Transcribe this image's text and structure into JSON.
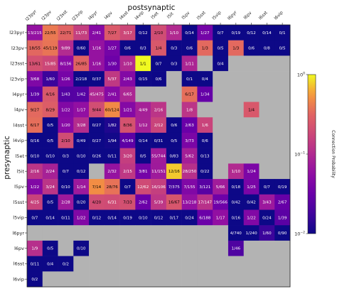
{
  "chart_data": {
    "type": "heatmap",
    "xlabel": "postsynaptic",
    "ylabel": "presynaptic",
    "colorbar_label": "Connection Probability",
    "colorbar_scale": "log",
    "colorbar_range": [
      0.01,
      1
    ],
    "colorbar_ticks": [
      {
        "value": 1,
        "base": "10",
        "exp": "0"
      },
      {
        "value": 0.1,
        "base": "10",
        "exp": "−1"
      },
      {
        "value": 0.01,
        "base": "10",
        "exp": "−2"
      }
    ],
    "colormap": "plasma",
    "empty_color": "#b3b3b3",
    "x_categories": [
      "l23pyr",
      "l23pv",
      "l23sst",
      "l23vip",
      "l4pyr",
      "l4pv",
      "l4sst",
      "l4vip",
      "l5et",
      "l5it",
      "l5pv",
      "l5sst",
      "l5vip",
      "l6pyr",
      "l6pv",
      "l6sst",
      "l6vip"
    ],
    "y_categories": [
      "l23pyr",
      "l23pv",
      "l23sst",
      "l23vip",
      "l4pyr",
      "l4pv",
      "l4sst",
      "l4vip",
      "l5et",
      "l5it",
      "l5pv",
      "l5sst",
      "l5vip",
      "l6pyr",
      "l6pv",
      "l6sst",
      "l6vip"
    ],
    "cells": [
      [
        "13/215",
        "22/55",
        "22/71",
        "11/73",
        "2/41",
        "7/27",
        "3/17",
        "0/12",
        "2/10",
        "1/10",
        "0/14",
        "1/27",
        "0/7",
        "0/19",
        "0/12",
        "0/14",
        "0/1"
      ],
      [
        "18/55",
        "45/119",
        "9/89",
        "0/60",
        "1/16",
        "1/27",
        "0/6",
        "0/3",
        "1/4",
        "0/3",
        "0/6",
        "1/3",
        "0/5",
        "1/3",
        "0/6",
        "0/8",
        "0/5"
      ],
      [
        "13/61",
        "15/85",
        "8/156",
        "26/85",
        "1/16",
        "1/30",
        "1/10",
        "1/1",
        "0/7",
        "0/3",
        "1/11",
        "",
        "0/4",
        "",
        "",
        "",
        ""
      ],
      [
        "3/68",
        "1/60",
        "1/26",
        "2/218",
        "0/37",
        "5/37",
        "2/43",
        "0/15",
        "0/6",
        "",
        "0/1",
        "0/4",
        "",
        "",
        "",
        "",
        ""
      ],
      [
        "1/39",
        "4/16",
        "1/43",
        "1/42",
        "45/475",
        "2/41",
        "6/65",
        "",
        "",
        "",
        "6/17",
        "1/34",
        "",
        "",
        "",
        "",
        ""
      ],
      [
        "9/27",
        "8/29",
        "1/22",
        "1/17",
        "9/44",
        "60/124",
        "1/21",
        "4/49",
        "2/16",
        "",
        "1/8",
        "",
        "",
        "",
        "1/4",
        "",
        ""
      ],
      [
        "6/17",
        "0/5",
        "1/20",
        "3/28",
        "0/27",
        "1/82",
        "8/36",
        "1/12",
        "2/12",
        "0/6",
        "2/63",
        "1/6",
        "",
        "",
        "",
        "",
        ""
      ],
      [
        "0/16",
        "0/5",
        "2/10",
        "0/49",
        "0/27",
        "1/94",
        "4/149",
        "0/14",
        "0/31",
        "0/5",
        "3/73",
        "0/6",
        "",
        "",
        "",
        "",
        ""
      ],
      [
        "0/10",
        "0/10",
        "0/3",
        "0/10",
        "0/26",
        "0/11",
        "3/20",
        "0/5",
        "55/744",
        "0/83",
        "5/62",
        "0/13",
        "",
        "",
        "",
        "",
        ""
      ],
      [
        "2/16",
        "2/24",
        "0/7",
        "0/12",
        "",
        "2/32",
        "2/15",
        "3/81",
        "11/151",
        "12/16",
        "28/250",
        "0/22",
        "",
        "1/10",
        "1/24",
        "",
        ""
      ],
      [
        "1/22",
        "3/24",
        "0/10",
        "1/14",
        "7/14",
        "28/76",
        "0/7",
        "12/62",
        "16/106",
        "7/375",
        "7/155",
        "3/121",
        "5/66",
        "0/18",
        "1/25",
        "0/7",
        "0/19"
      ],
      [
        "4/25",
        "0/5",
        "2/28",
        "0/20",
        "4/20",
        "6/31",
        "7/33",
        "2/62",
        "5/39",
        "16/67",
        "13/218",
        "17/147",
        "19/566",
        "0/42",
        "0/42",
        "3/43",
        "2/67"
      ],
      [
        "0/7",
        "0/14",
        "0/11",
        "1/22",
        "0/12",
        "0/14",
        "0/19",
        "0/10",
        "0/12",
        "0/17",
        "0/24",
        "6/188",
        "1/17",
        "0/16",
        "1/22",
        "0/24",
        "1/39"
      ],
      [
        "",
        "",
        "",
        "",
        "",
        "",
        "",
        "",
        "",
        "",
        "",
        "",
        "",
        "4/740",
        "1/240",
        "1/60",
        "0/90"
      ],
      [
        "1/9",
        "0/5",
        "",
        "0/10",
        "",
        "",
        "",
        "",
        "",
        "",
        "",
        "",
        "",
        "1/46",
        "",
        "",
        ""
      ],
      [
        "0/11",
        "0/4",
        "0/2",
        "",
        "",
        "",
        "",
        "",
        "",
        "",
        "",
        "",
        "",
        "",
        "",
        "",
        ""
      ],
      [
        "0/2",
        "",
        "",
        "",
        "",
        "",
        "",
        "",
        "",
        "",
        "",
        "",
        "",
        "",
        "",
        "",
        ""
      ]
    ]
  }
}
